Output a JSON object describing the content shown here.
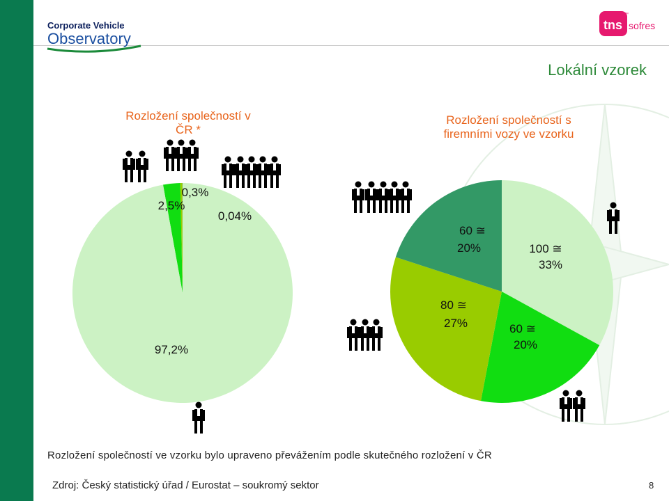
{
  "header": {
    "cvo_logo_line1": "Corporate Vehicle",
    "cvo_logo_line2": "Observatory",
    "tns_logo_left": "tns",
    "tns_logo_right": "sofres",
    "tns_logo_tm": "™"
  },
  "title": "Lokální vzorek",
  "left_chart_title_line1": "Rozložení společností v",
  "left_chart_title_line2": "ČR *",
  "right_chart_title_line1": "Rozložení společností s",
  "right_chart_title_line2": "firemními vozy ve vzorku",
  "chart_data": [
    {
      "type": "pie",
      "title": "Rozložení společností v ČR *",
      "slices": [
        {
          "label": "97,2%",
          "value": 97.2,
          "color": "#ccf2c4"
        },
        {
          "label": "2,5%",
          "value": 2.5,
          "color": "#11dd11"
        },
        {
          "label": "0,3%",
          "value": 0.3,
          "color": "#99cc00"
        },
        {
          "label": "0,04%",
          "value": 0.04,
          "color": "#339966"
        }
      ]
    },
    {
      "type": "pie",
      "title": "Rozložení společností s firemními vozy ve vzorku",
      "slices": [
        {
          "label_line1": "100 ≅",
          "label_line2": "33%",
          "count": 100,
          "value": 33,
          "color": "#ccf2c4"
        },
        {
          "label_line1": "60 ≅",
          "label_line2": "20%",
          "count": 60,
          "value": 20,
          "color": "#11dd11"
        },
        {
          "label_line1": "80 ≅",
          "label_line2": "27%",
          "count": 80,
          "value": 27,
          "color": "#99cc00"
        },
        {
          "label_line1": "60 ≅",
          "label_line2": "20%",
          "count": 60,
          "value": 20,
          "color": "#339966"
        }
      ]
    }
  ],
  "footnote": "Rozložení společností ve vzorku bylo upraveno převážením podle skutečného rozložení v ČR",
  "source": "Zdroj: Český statistický úřad / Eurostat – soukromý sektor",
  "page_number": "8",
  "icons": {
    "person": "person-icon"
  }
}
